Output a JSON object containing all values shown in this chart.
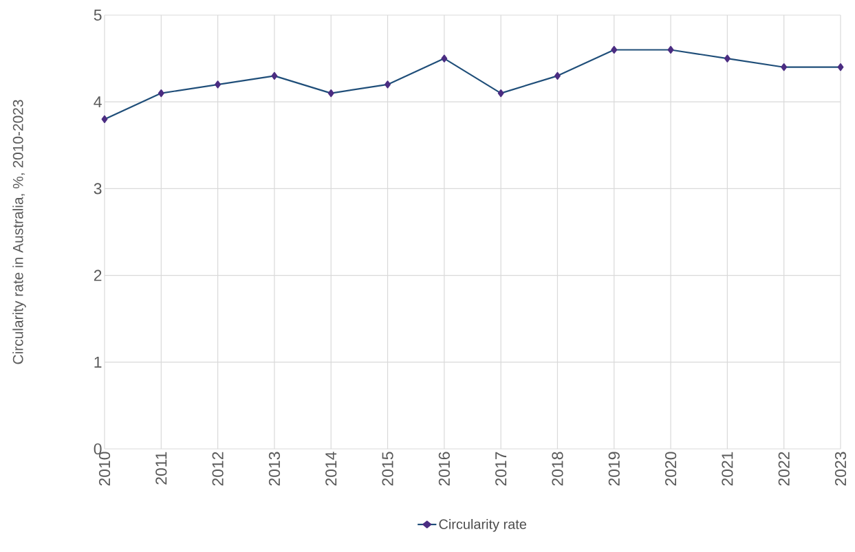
{
  "chart_data": {
    "type": "line",
    "ylabel": "Circularity rate in Australia, %, 2010-2023",
    "x": [
      2010,
      2011,
      2012,
      2013,
      2014,
      2015,
      2016,
      2017,
      2018,
      2019,
      2020,
      2021,
      2022,
      2023
    ],
    "series": [
      {
        "name": "Circularity rate",
        "color": "#1f4e79",
        "values": [
          3.8,
          4.1,
          4.2,
          4.3,
          4.1,
          4.2,
          4.5,
          4.1,
          4.3,
          4.6,
          4.6,
          4.5,
          4.4,
          4.4
        ]
      }
    ],
    "xlim": [
      2010,
      2023
    ],
    "xticks": [
      2010,
      2011,
      2012,
      2013,
      2014,
      2015,
      2016,
      2017,
      2018,
      2019,
      2020,
      2021,
      2022,
      2023
    ],
    "ylim": [
      0,
      5
    ],
    "yticks": [
      0,
      1,
      2,
      3,
      4,
      5
    ],
    "grid": true,
    "legend": "bottom",
    "marker": "diamond",
    "line_style": "solid"
  }
}
